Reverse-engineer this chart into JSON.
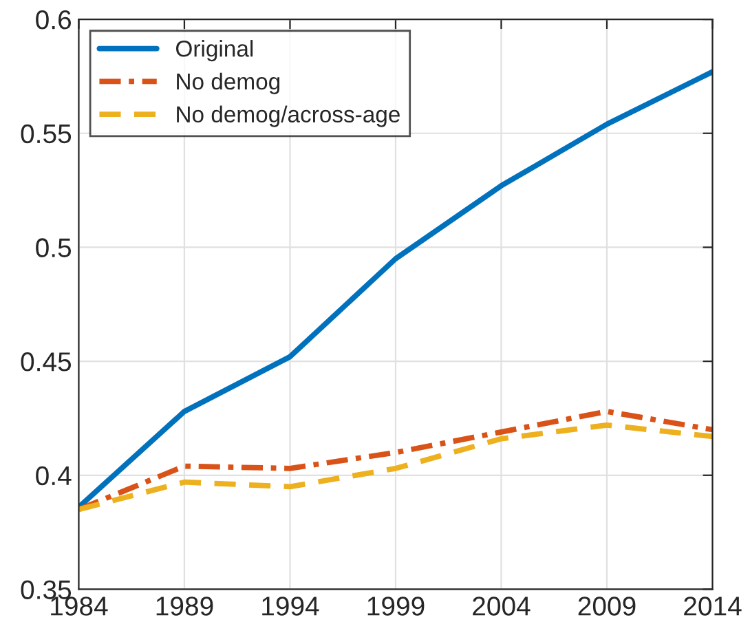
{
  "chart_data": {
    "type": "line",
    "x": [
      1984,
      1989,
      1994,
      1999,
      2004,
      2009,
      2014
    ],
    "series": [
      {
        "name": "Original",
        "color": "#0072bd",
        "line_style": "solid",
        "values": [
          0.386,
          0.428,
          0.452,
          0.495,
          0.527,
          0.554,
          0.577
        ]
      },
      {
        "name": "No demog",
        "color": "#d95319",
        "line_style": "dashdot",
        "values": [
          0.385,
          0.404,
          0.403,
          0.41,
          0.419,
          0.428,
          0.42
        ]
      },
      {
        "name": "No demog/across-age",
        "color": "#edb120",
        "line_style": "dashed",
        "values": [
          0.385,
          0.397,
          0.395,
          0.403,
          0.416,
          0.422,
          0.417
        ]
      }
    ],
    "xlim": [
      1984,
      2014
    ],
    "xticks": [
      1984,
      1989,
      1994,
      1999,
      2004,
      2009,
      2014
    ],
    "ylim": [
      0.35,
      0.6
    ],
    "yticks": [
      0.35,
      0.4,
      0.45,
      0.5,
      0.55,
      0.6
    ],
    "grid": true,
    "legend": "top left",
    "marker": "none"
  }
}
